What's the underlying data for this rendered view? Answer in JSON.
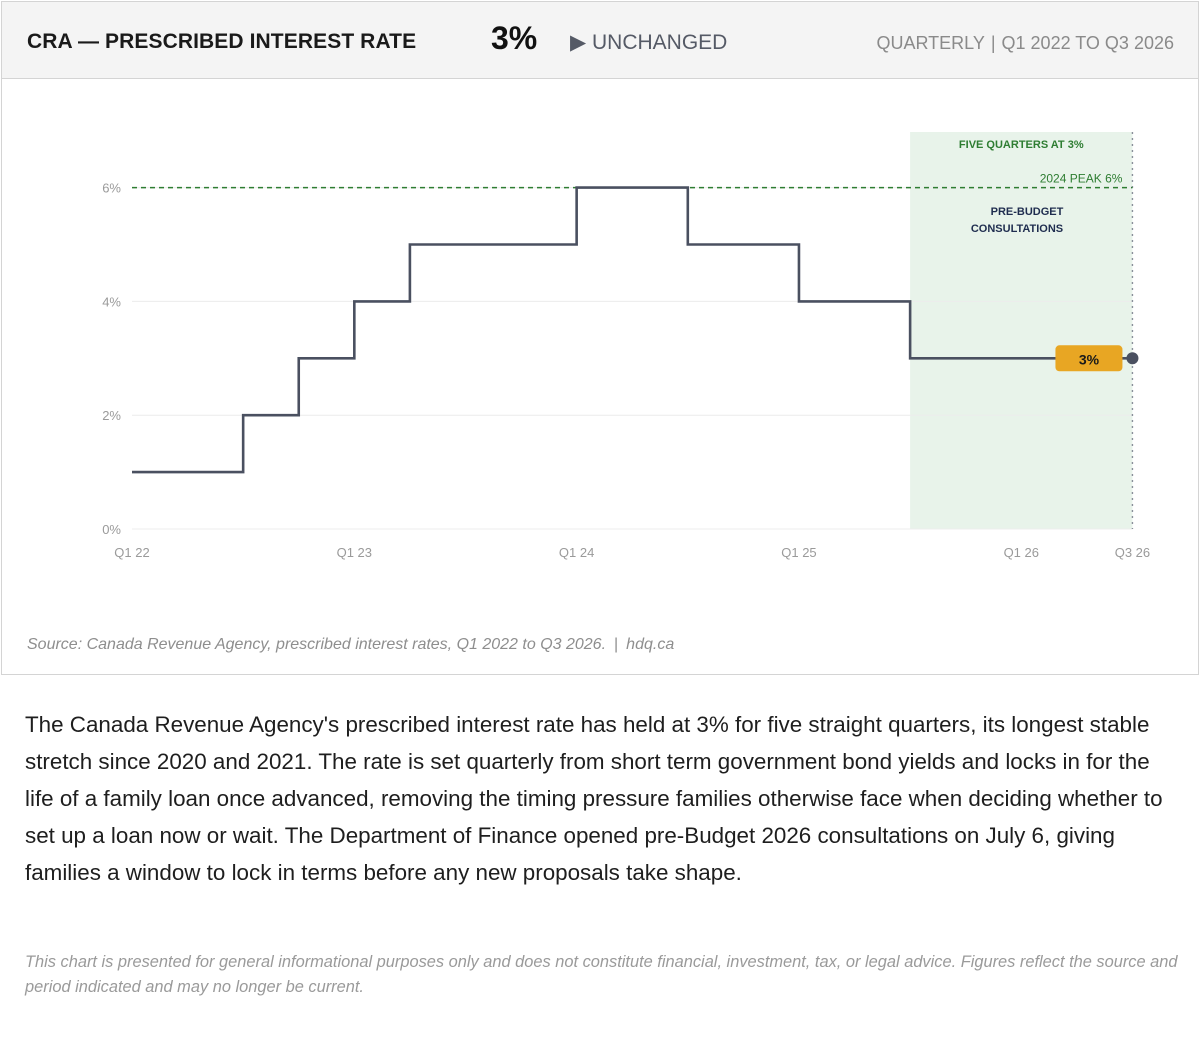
{
  "header": {
    "title": "CRA — PRESCRIBED INTEREST RATE",
    "current_value": "3%",
    "status": "▶ UNCHANGED",
    "frequency": "QUARTERLY",
    "separator": "|",
    "range": "Q1 2022 TO Q3 2026"
  },
  "chart_data": {
    "type": "line",
    "step": true,
    "x_unit": "quarter",
    "x": [
      "Q1 2022",
      "Q2 2022",
      "Q3 2022",
      "Q4 2022",
      "Q1 2023",
      "Q2 2023",
      "Q3 2023",
      "Q4 2023",
      "Q1 2024",
      "Q2 2024",
      "Q3 2024",
      "Q4 2024",
      "Q1 2025",
      "Q2 2025",
      "Q3 2025",
      "Q4 2025",
      "Q1 2026",
      "Q2 2026",
      "Q3 2026"
    ],
    "series": [
      {
        "name": "",
        "color": "#4a5060",
        "values": [
          1,
          1,
          2,
          3,
          4,
          5,
          5,
          5,
          6,
          6,
          5,
          5,
          4,
          4,
          3,
          3,
          3,
          3,
          3
        ]
      }
    ],
    "y_ticks": [
      "0%",
      "2%",
      "4%",
      "6%"
    ],
    "y_tick_values": [
      0,
      2,
      4,
      6
    ],
    "ylim": [
      0,
      6
    ],
    "x_ticks": [
      {
        "label": "Q1 22",
        "index": 0
      },
      {
        "label": "Q1 23",
        "index": 4
      },
      {
        "label": "Q1 24",
        "index": 8
      },
      {
        "label": "Q1 25",
        "index": 12
      },
      {
        "label": "Q1 26",
        "index": 16
      },
      {
        "label": "Q3 26",
        "index": 18
      }
    ],
    "grid": "horizontal",
    "reference_line": {
      "value": 6,
      "label": "2024 PEAK 6%",
      "color": "#2e7d32"
    },
    "shaded_region": {
      "start_index": 14,
      "end_index": 18,
      "label": "FIVE QUARTERS AT 3%",
      "color": "#2e7d32",
      "fill": "#e8f3ea"
    },
    "annotations": [
      {
        "index": 18,
        "line1": "PRE-BUDGET",
        "line2": "CONSULTATIONS",
        "color": "#1f2d4f"
      }
    ],
    "end_badge": {
      "label": "3%",
      "color": "#e8a623"
    },
    "xlabel": "",
    "ylabel": ""
  },
  "source": {
    "text": "Source: Canada Revenue Agency, prescribed interest rates, Q1 2022 to Q3 2026.",
    "separator": "|",
    "site": "hdq.ca"
  },
  "body_text": "The Canada Revenue Agency's prescribed interest rate has held at 3% for five straight quarters, its longest stable stretch since 2020 and 2021. The rate is set quarterly from short term government bond yields and locks in for the life of a family loan once advanced, removing the timing pressure families otherwise face when deciding whether to set up a loan now or wait. The Department of Finance opened pre-Budget 2026 consultations on July 6, giving families a window to lock in terms before any new proposals take shape.",
  "disclaimer": "This chart is presented for general informational purposes only and does not constitute financial, investment, tax, or legal advice. Figures reflect the source and period indicated and may no longer be current."
}
